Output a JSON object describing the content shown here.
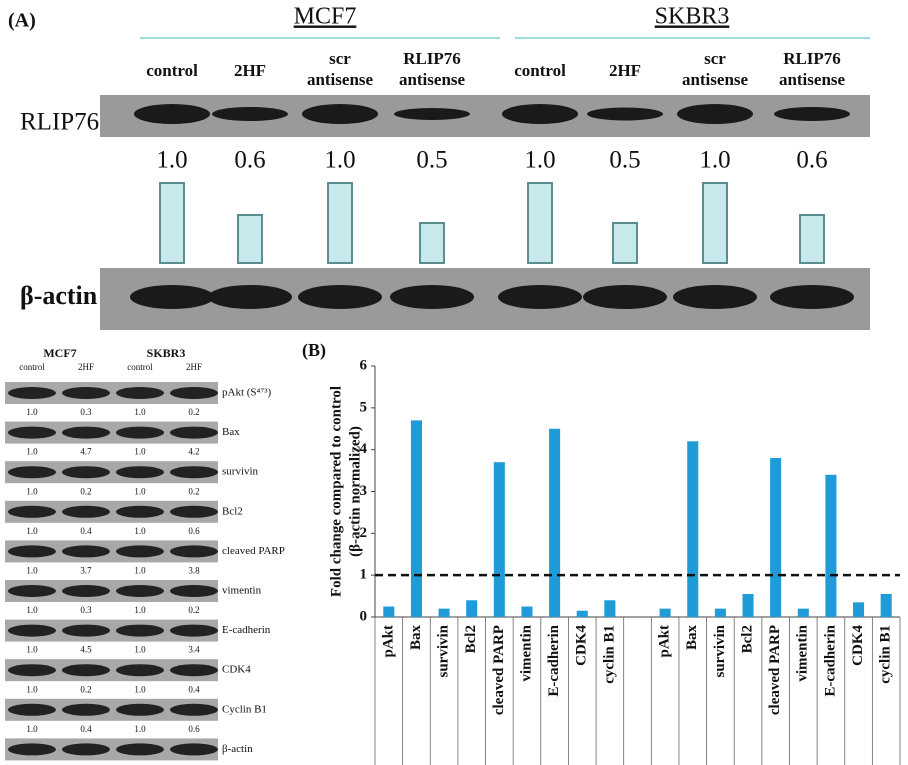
{
  "panel_a": {
    "label": "(A)",
    "cell_lines": [
      "MCF7",
      "SKBR3"
    ],
    "lanes": [
      [
        "control"
      ],
      [
        "2HF"
      ],
      [
        "scr",
        "antisense"
      ],
      [
        "RLIP76",
        "antisense"
      ],
      [
        "control"
      ],
      [
        "2HF"
      ],
      [
        "scr",
        "antisense"
      ],
      [
        "RLIP76",
        "antisense"
      ]
    ],
    "rows": [
      "RLIP76",
      "β-actin"
    ],
    "values": [
      1.0,
      0.6,
      1.0,
      0.5,
      1.0,
      0.5,
      1.0,
      0.6
    ],
    "value_labels": [
      "1.0",
      "0.6",
      "1.0",
      "0.5",
      "1.0",
      "0.5",
      "1.0",
      "0.6"
    ]
  },
  "panel_blot": {
    "cell_lines": [
      "MCF7",
      "SKBR3"
    ],
    "lanes": [
      "control",
      "2HF",
      "control",
      "2HF"
    ],
    "rows": [
      {
        "label": "pAkt (S⁴⁷³)",
        "values": [
          "1.0",
          "0.3",
          "1.0",
          "0.2"
        ]
      },
      {
        "label": "Bax",
        "values": [
          "1.0",
          "4.7",
          "1.0",
          "4.2"
        ]
      },
      {
        "label": "survivin",
        "values": [
          "1.0",
          "0.2",
          "1.0",
          "0.2"
        ]
      },
      {
        "label": "Bcl2",
        "values": [
          "1.0",
          "0.4",
          "1.0",
          "0.6"
        ]
      },
      {
        "label": "cleaved PARP",
        "values": [
          "1.0",
          "3.7",
          "1.0",
          "3.8"
        ]
      },
      {
        "label": "vimentin",
        "values": [
          "1.0",
          "0.3",
          "1.0",
          "0.2"
        ]
      },
      {
        "label": "E-cadherin",
        "values": [
          "1.0",
          "4.5",
          "1.0",
          "3.4"
        ]
      },
      {
        "label": "CDK4",
        "values": [
          "1.0",
          "0.2",
          "1.0",
          "0.4"
        ]
      },
      {
        "label": "Cyclin B1",
        "values": [
          "1.0",
          "0.4",
          "1.0",
          "0.6"
        ]
      },
      {
        "label": "β-actin",
        "values": []
      }
    ]
  },
  "chart_data": {
    "type": "bar",
    "panel_label": "(B)",
    "y_label": [
      "Fold change compared to control",
      "(β-actin normalized)"
    ],
    "categories": [
      "pAkt",
      "Bax",
      "survivin",
      "Bcl2",
      "cleaved PARP",
      "vimentin",
      "E-cadherin",
      "CDK4",
      "cyclin B1",
      null,
      "pAkt",
      "Bax",
      "survivin",
      "Bcl2",
      "cleaved PARP",
      "vimentin",
      "E-cadherin",
      "CDK4",
      "cyclin B1"
    ],
    "values": [
      0.25,
      4.7,
      0.2,
      0.4,
      3.7,
      0.25,
      4.5,
      0.15,
      0.4,
      null,
      0.2,
      4.2,
      0.2,
      0.55,
      3.8,
      0.2,
      3.4,
      0.35,
      0.55
    ],
    "color": "#1f9bd7",
    "ylim": [
      0,
      6
    ],
    "yticks": [
      0,
      1,
      2,
      3,
      4,
      5,
      6
    ],
    "reference_line": 1
  }
}
